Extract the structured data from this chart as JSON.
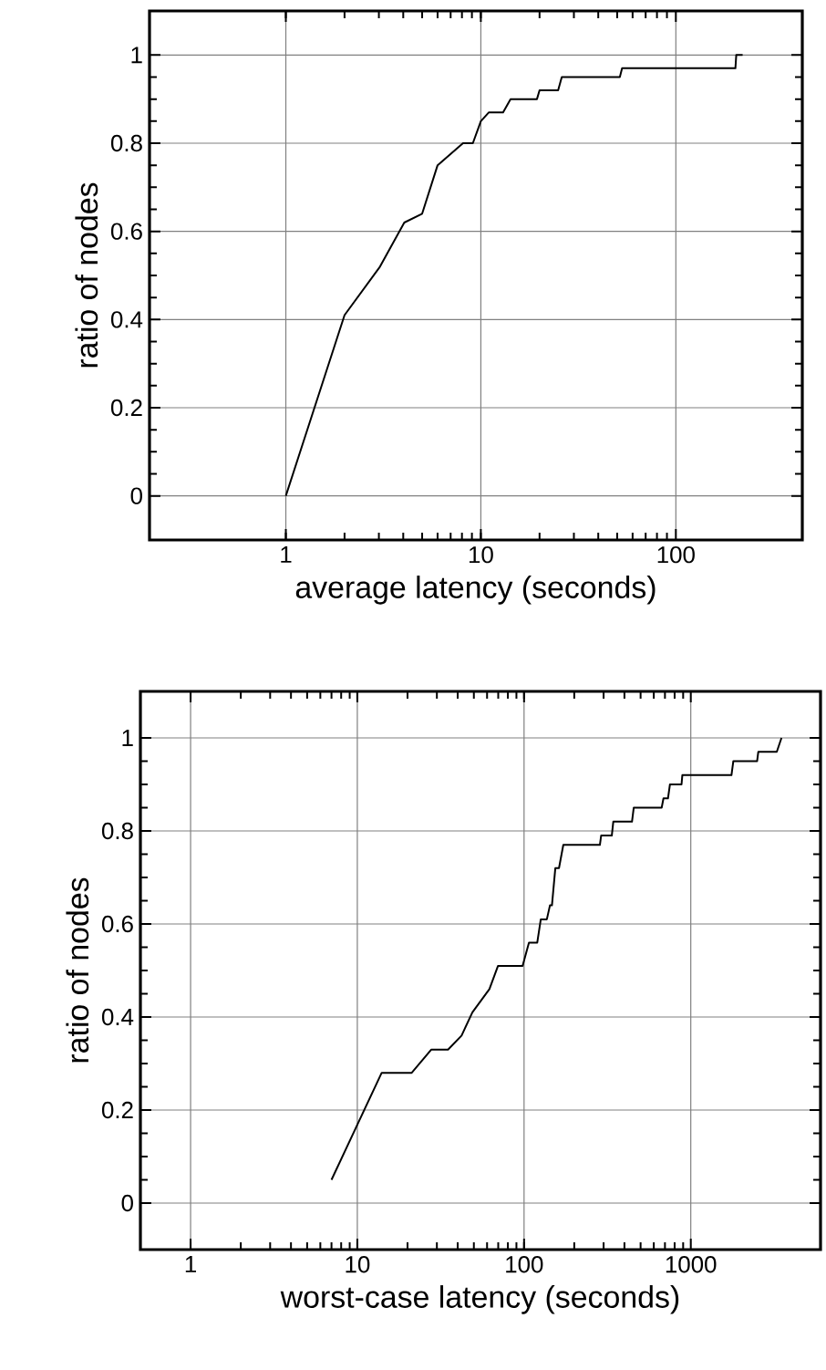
{
  "chart_data": [
    {
      "type": "line",
      "xlabel": "average latency (seconds)",
      "ylabel": "ratio of nodes",
      "log": "x",
      "grid": true,
      "marker": "none",
      "line_style": "solid",
      "xlim": [
        0.2,
        445
      ],
      "ylim": [
        -0.1,
        1.1
      ],
      "xticks": [
        1,
        10,
        100
      ],
      "yticks": [
        0,
        0.2,
        0.4,
        0.6,
        0.8,
        1
      ],
      "series": [
        {
          "color": "#000000",
          "x": [
            1,
            2.0,
            3.04,
            4.05,
            5.0,
            6.0,
            8.1,
            9.1,
            10,
            11,
            13,
            14.2,
            19.4,
            20,
            24.9,
            26,
            51.6,
            53,
            202,
            204,
            220
          ],
          "values": [
            0,
            0.41,
            0.52,
            0.62,
            0.64,
            0.75,
            0.8,
            0.8,
            0.85,
            0.87,
            0.87,
            0.9,
            0.9,
            0.92,
            0.92,
            0.95,
            0.95,
            0.97,
            0.97,
            1,
            1
          ]
        }
      ]
    },
    {
      "type": "line",
      "xlabel": "worst-case latency (seconds)",
      "ylabel": "ratio of nodes",
      "log": "x",
      "grid": true,
      "marker": "none",
      "line_style": "solid",
      "xlim": [
        0.5,
        6000
      ],
      "ylim": [
        -0.1,
        1.1
      ],
      "xticks": [
        1,
        10,
        100,
        1000
      ],
      "yticks": [
        0,
        0.2,
        0.4,
        0.6,
        0.8,
        1
      ],
      "series": [
        {
          "color": "#000000",
          "x": [
            7.0,
            14,
            21.2,
            27.8,
            35,
            42.2,
            49,
            62,
            69.8,
            98,
            107,
            120,
            126,
            137,
            143,
            147,
            154,
            162,
            172,
            285,
            290,
            336,
            343,
            444,
            455,
            669,
            686,
            730,
            750,
            880,
            890,
            1754,
            1800,
            2500,
            2540,
            3280,
            3500
          ],
          "values": [
            0.05,
            0.28,
            0.28,
            0.33,
            0.33,
            0.36,
            0.41,
            0.46,
            0.51,
            0.51,
            0.56,
            0.56,
            0.61,
            0.61,
            0.64,
            0.64,
            0.72,
            0.72,
            0.77,
            0.77,
            0.79,
            0.79,
            0.82,
            0.82,
            0.85,
            0.85,
            0.87,
            0.87,
            0.9,
            0.9,
            0.92,
            0.92,
            0.95,
            0.95,
            0.97,
            0.97,
            1
          ]
        }
      ]
    }
  ]
}
